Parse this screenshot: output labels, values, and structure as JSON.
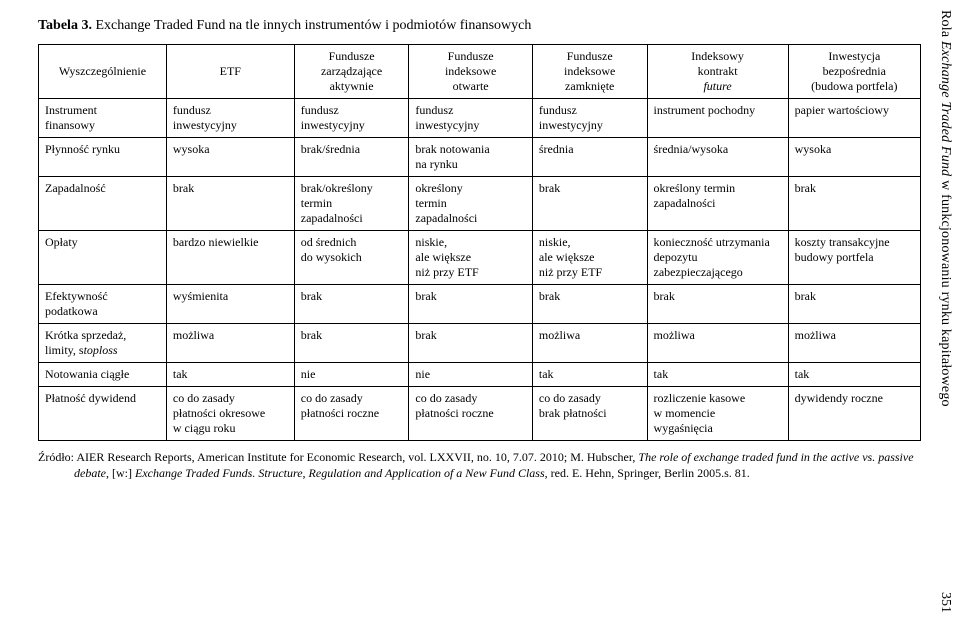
{
  "side_title_pre": "Rola ",
  "side_title_italic": "Exchange Traded Fund",
  "side_title_post": " w funkcjonowaniu rynku kapitałowego",
  "page_number": "351",
  "caption_bold": "Tabela 3.",
  "caption_rest": " Exchange Traded Fund na tle innych instrumentów i podmiotów finansowych",
  "headers": {
    "c0": "Wyszczególnienie",
    "c1": "ETF",
    "c2": "Fundusze\nzarządzające\naktywnie",
    "c3": "Fundusze\nindeksowe\notwarte",
    "c4": "Fundusze\nindeksowe\nzamknięte",
    "c5_a": "Indeksowy\nkontrakt",
    "c5_b": "future",
    "c6": "Inwestycja\nbezpośrednia\n(budowa portfela)"
  },
  "rows": [
    {
      "c0": "Instrument\nfinansowy",
      "c1": "fundusz\ninwestycyjny",
      "c2": "fundusz\ninwestycyjny",
      "c3": "fundusz\ninwestycyjny",
      "c4": "fundusz\ninwestycyjny",
      "c5": "instrument pochodny",
      "c6": "papier wartościowy"
    },
    {
      "c0": "Płynność rynku",
      "c1": "wysoka",
      "c2": "brak/średnia",
      "c3": "brak notowania\nna rynku",
      "c4": "średnia",
      "c5": "średnia/wysoka",
      "c6": "wysoka"
    },
    {
      "c0": "Zapadalność",
      "c1": "brak",
      "c2": "brak/określony\ntermin\nzapadalności",
      "c3": "określony\ntermin\nzapadalności",
      "c4": "brak",
      "c5": "określony termin\nzapadalności",
      "c6": "brak"
    },
    {
      "c0": "Opłaty",
      "c1": "bardzo niewielkie",
      "c2": "od średnich\ndo wysokich",
      "c3": "niskie,\nale większe\nniż przy ETF",
      "c4": "niskie,\nale większe\nniż przy ETF",
      "c5": "konieczność utrzymania\ndepozytu\nzabezpieczającego",
      "c6": "koszty transakcyjne\nbudowy portfela"
    },
    {
      "c0": "Efektywność\npodatkowa",
      "c1": "wyśmienita",
      "c2": "brak",
      "c3": "brak",
      "c4": "brak",
      "c5": "brak",
      "c6": "brak"
    },
    {
      "c0_a": "Krótka sprzedaż,\nlimity, s",
      "c0_b": "toploss",
      "c1": "możliwa",
      "c2": "brak",
      "c3": "brak",
      "c4": "możliwa",
      "c5": "możliwa",
      "c6": "możliwa"
    },
    {
      "c0": "Notowania ciągłe",
      "c1": "tak",
      "c2": "nie",
      "c3": "nie",
      "c4": "tak",
      "c5": "tak",
      "c6": "tak"
    },
    {
      "c0": "Płatność dywidend",
      "c1": "co do zasady\npłatności okresowe\nw ciągu roku",
      "c2": "co do zasady\npłatności roczne",
      "c3": "co do zasady\npłatności roczne",
      "c4": "co do zasady\nbrak płatności",
      "c5": "rozliczenie kasowe\nw momencie\nwygaśnięcia",
      "c6": "dywidendy roczne"
    }
  ],
  "source": {
    "t1": "Źródło: AIER Research Reports, American Institute for Economic Research, vol. LXXVII, no. 10, 7.07. 2010; M. Hubscher, ",
    "i1": "The role of exchange traded fund in the active vs. passive debate",
    "t2": ", [w:] ",
    "i2": "Exchange Traded Funds. Structure, Regulation and Application of a New Fund Class",
    "t3": ", red. E. Hehn, Springer, Berlin 2005.s. 81."
  }
}
